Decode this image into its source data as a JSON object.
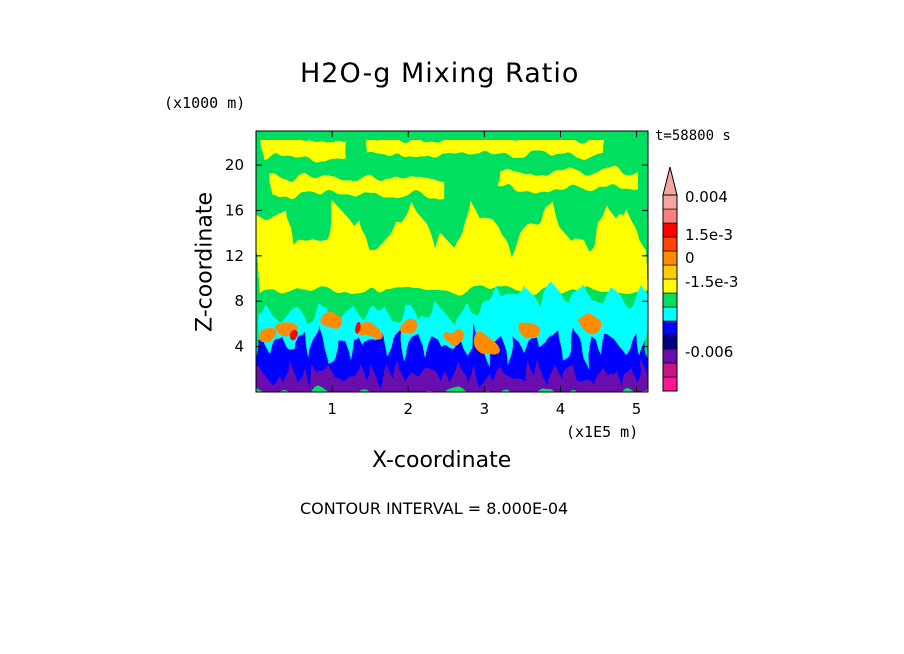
{
  "chart_data": {
    "type": "heatmap",
    "title": "H2O-g Mixing Ratio",
    "xlabel": "X-coordinate",
    "ylabel": "Z-coordinate",
    "x_unit": "(x1E5 m)",
    "y_unit": "(x1000 m)",
    "time_label": "t=58800 s",
    "contour_interval_text": "CONTOUR INTERVAL = 8.000E-04",
    "xlim": [
      0,
      5.15
    ],
    "ylim": [
      0,
      23
    ],
    "x_ticks": [
      "1",
      "2",
      "3",
      "4",
      "5"
    ],
    "x_tick_values": [
      1,
      2,
      3,
      4,
      5
    ],
    "y_ticks": [
      "4",
      "8",
      "12",
      "16",
      "20"
    ],
    "y_tick_values": [
      4,
      8,
      12,
      16,
      20
    ],
    "colorbar": {
      "labels": [
        "0.004",
        "1.5e-3",
        "0",
        "-1.5e-3",
        "-0.006"
      ],
      "label_values": [
        0.004,
        0.0015,
        0,
        -0.0015,
        -0.006
      ],
      "colors": [
        "#ff1493",
        "#c71585",
        "#6a0dad",
        "#000080",
        "#0000ff",
        "#00ffff",
        "#00e060",
        "#ffff00",
        "#ffcc00",
        "#ff8c00",
        "#ff4500",
        "#ff0000",
        "#ff7f7f",
        "#f4a7a0"
      ]
    },
    "bands": [
      {
        "name": "magenta",
        "color": "#c71585"
      },
      {
        "name": "purple",
        "color": "#6a0dad"
      },
      {
        "name": "blue",
        "color": "#0000ff"
      },
      {
        "name": "cyan",
        "color": "#00ffff"
      },
      {
        "name": "green",
        "color": "#00e060"
      },
      {
        "name": "yellow",
        "color": "#ffff00"
      },
      {
        "name": "orange",
        "color": "#ff8c00"
      },
      {
        "name": "red",
        "color": "#ff0000"
      }
    ]
  }
}
